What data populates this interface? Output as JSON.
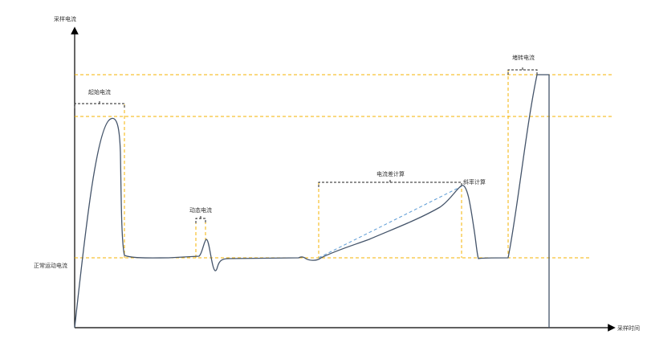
{
  "axes": {
    "y_label": "采样电流",
    "x_label": "采样时间"
  },
  "labels": {
    "start_current": "起始电流",
    "dynamic_current": "动态电流",
    "current_diff_calc": "电流差计算",
    "slope_calc": "斜率计算",
    "stall_current": "堵转电流",
    "normal_running_current": "正常运动电流"
  },
  "colors": {
    "curve": "#44546a",
    "guide_dashed": "#f5b300",
    "bracket": "#222222",
    "slope_line": "#5b9bd5",
    "axis": "#000000"
  }
}
